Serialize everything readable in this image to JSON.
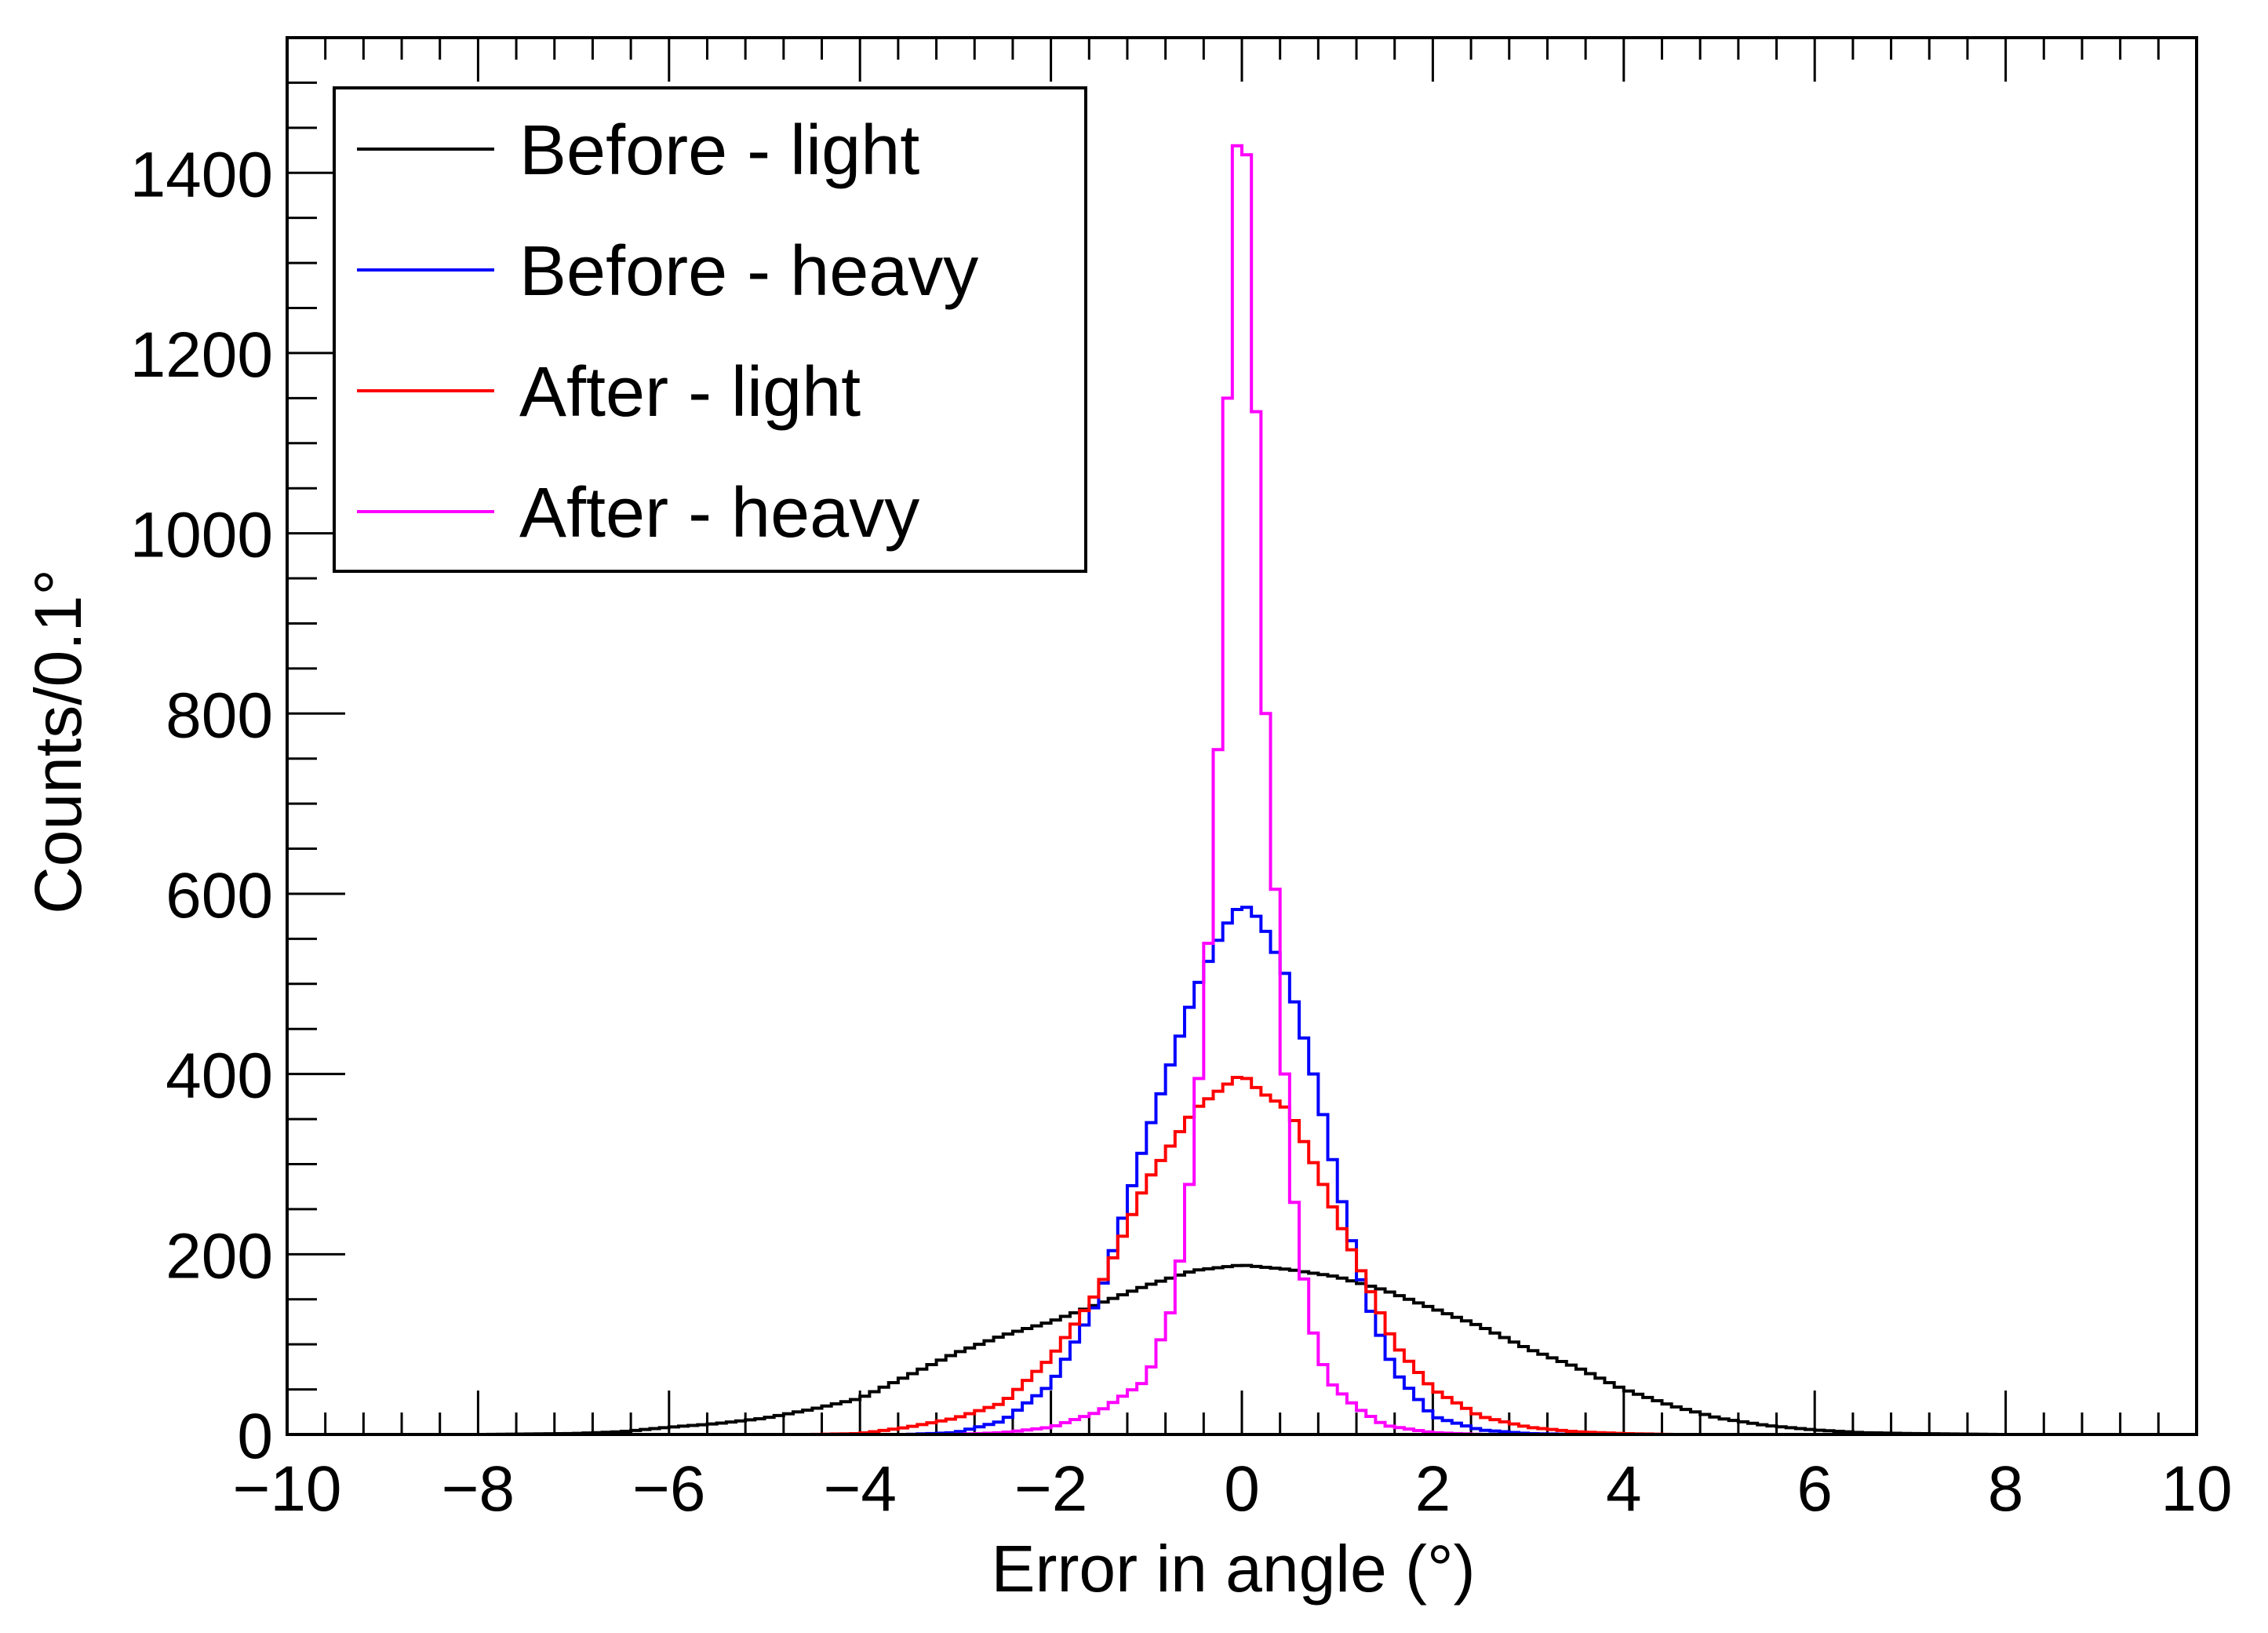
{
  "chart_data": {
    "type": "histogram",
    "title": "",
    "xlabel": "Error in angle (°)",
    "ylabel": "Counts/0.1°",
    "xlim": [
      -10,
      10
    ],
    "ylim": [
      0,
      1550
    ],
    "bin_width": 0.1,
    "x_ticks": [
      "−10",
      "−8",
      "−6",
      "−4",
      "−2",
      "0",
      "2",
      "4",
      "6",
      "8",
      "10"
    ],
    "x_tick_values": [
      -10,
      -8,
      -6,
      -4,
      -2,
      0,
      2,
      4,
      6,
      8,
      10
    ],
    "y_ticks": [
      "0",
      "200",
      "400",
      "600",
      "800",
      "1000",
      "1200",
      "1400"
    ],
    "y_tick_values": [
      0,
      200,
      400,
      600,
      800,
      1000,
      1200,
      1400
    ],
    "legend": {
      "placement": "top-left"
    },
    "series": [
      {
        "name": "Before - light",
        "color": "#000000",
        "profile": [
          [
            -10,
            0
          ],
          [
            -8,
            0
          ],
          [
            -7,
            1
          ],
          [
            -6.5,
            3
          ],
          [
            -6,
            8
          ],
          [
            -5.5,
            12
          ],
          [
            -5,
            18
          ],
          [
            -4.5,
            28
          ],
          [
            -4,
            40
          ],
          [
            -3.5,
            65
          ],
          [
            -3,
            90
          ],
          [
            -2.5,
            110
          ],
          [
            -2,
            125
          ],
          [
            -1.5,
            145
          ],
          [
            -1,
            165
          ],
          [
            -0.5,
            182
          ],
          [
            0,
            188
          ],
          [
            0.5,
            183
          ],
          [
            1,
            175
          ],
          [
            1.5,
            160
          ],
          [
            2,
            140
          ],
          [
            2.5,
            120
          ],
          [
            3,
            95
          ],
          [
            3.5,
            75
          ],
          [
            4,
            50
          ],
          [
            4.5,
            32
          ],
          [
            5,
            18
          ],
          [
            5.5,
            10
          ],
          [
            6,
            5
          ],
          [
            6.5,
            2
          ],
          [
            7,
            1
          ],
          [
            8,
            0
          ],
          [
            10,
            0
          ]
        ]
      },
      {
        "name": "Before - heavy",
        "color": "#0000ff",
        "profile": [
          [
            -10,
            0
          ],
          [
            -3.5,
            0
          ],
          [
            -3,
            2
          ],
          [
            -2.5,
            15
          ],
          [
            -2,
            55
          ],
          [
            -1.5,
            150
          ],
          [
            -1,
            330
          ],
          [
            -0.5,
            490
          ],
          [
            -0.2,
            560
          ],
          [
            0,
            590
          ],
          [
            0.2,
            570
          ],
          [
            0.5,
            500
          ],
          [
            0.8,
            380
          ],
          [
            1,
            280
          ],
          [
            1.3,
            150
          ],
          [
            1.6,
            70
          ],
          [
            2,
            20
          ],
          [
            2.5,
            5
          ],
          [
            3,
            1
          ],
          [
            3.5,
            0
          ],
          [
            10,
            0
          ]
        ]
      },
      {
        "name": "After - light",
        "color": "#ff0000",
        "profile": [
          [
            -10,
            0
          ],
          [
            -4.5,
            0
          ],
          [
            -4,
            1
          ],
          [
            -3.5,
            8
          ],
          [
            -3,
            18
          ],
          [
            -2.5,
            35
          ],
          [
            -2,
            85
          ],
          [
            -1.5,
            160
          ],
          [
            -1,
            280
          ],
          [
            -0.5,
            360
          ],
          [
            -0.2,
            385
          ],
          [
            0,
            400
          ],
          [
            0.2,
            380
          ],
          [
            0.5,
            360
          ],
          [
            0.8,
            290
          ],
          [
            1,
            240
          ],
          [
            1.3,
            170
          ],
          [
            1.6,
            100
          ],
          [
            2,
            50
          ],
          [
            2.5,
            20
          ],
          [
            3,
            8
          ],
          [
            3.5,
            3
          ],
          [
            4,
            1
          ],
          [
            4.5,
            0
          ],
          [
            10,
            0
          ]
        ]
      },
      {
        "name": "After - heavy",
        "color": "#ff00ff",
        "profile": [
          [
            -10,
            0
          ],
          [
            -3,
            0
          ],
          [
            -2.5,
            2
          ],
          [
            -2,
            8
          ],
          [
            -1.5,
            25
          ],
          [
            -1,
            60
          ],
          [
            -0.7,
            150
          ],
          [
            -0.5,
            320
          ],
          [
            -0.3,
            620
          ],
          [
            -0.2,
            900
          ],
          [
            -0.1,
            1400
          ],
          [
            0,
            1460
          ],
          [
            0.1,
            1380
          ],
          [
            0.2,
            890
          ],
          [
            0.3,
            710
          ],
          [
            0.4,
            500
          ],
          [
            0.5,
            300
          ],
          [
            0.7,
            130
          ],
          [
            0.9,
            60
          ],
          [
            1.2,
            30
          ],
          [
            1.5,
            10
          ],
          [
            2,
            2
          ],
          [
            2.5,
            0
          ],
          [
            10,
            0
          ]
        ]
      }
    ]
  }
}
